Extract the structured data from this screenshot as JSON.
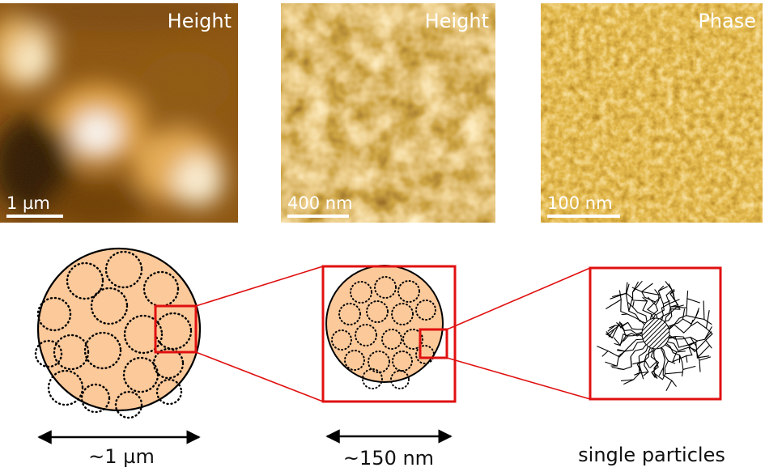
{
  "panels": [
    {
      "label": "Height",
      "scale": "1 µm"
    },
    {
      "label": "Height",
      "scale": "400 nm"
    },
    {
      "label": "Phase",
      "scale": "100 nm"
    }
  ],
  "captions": {
    "left": "~1 µm",
    "middle": "~150 nm",
    "right": "single particles"
  },
  "colors": {
    "particle_fill": "#fbc99a",
    "highlight": "#e01010",
    "afm_dark": "#2a1402",
    "afm_mid": "#a86a16",
    "afm_light": "#ffffff"
  }
}
